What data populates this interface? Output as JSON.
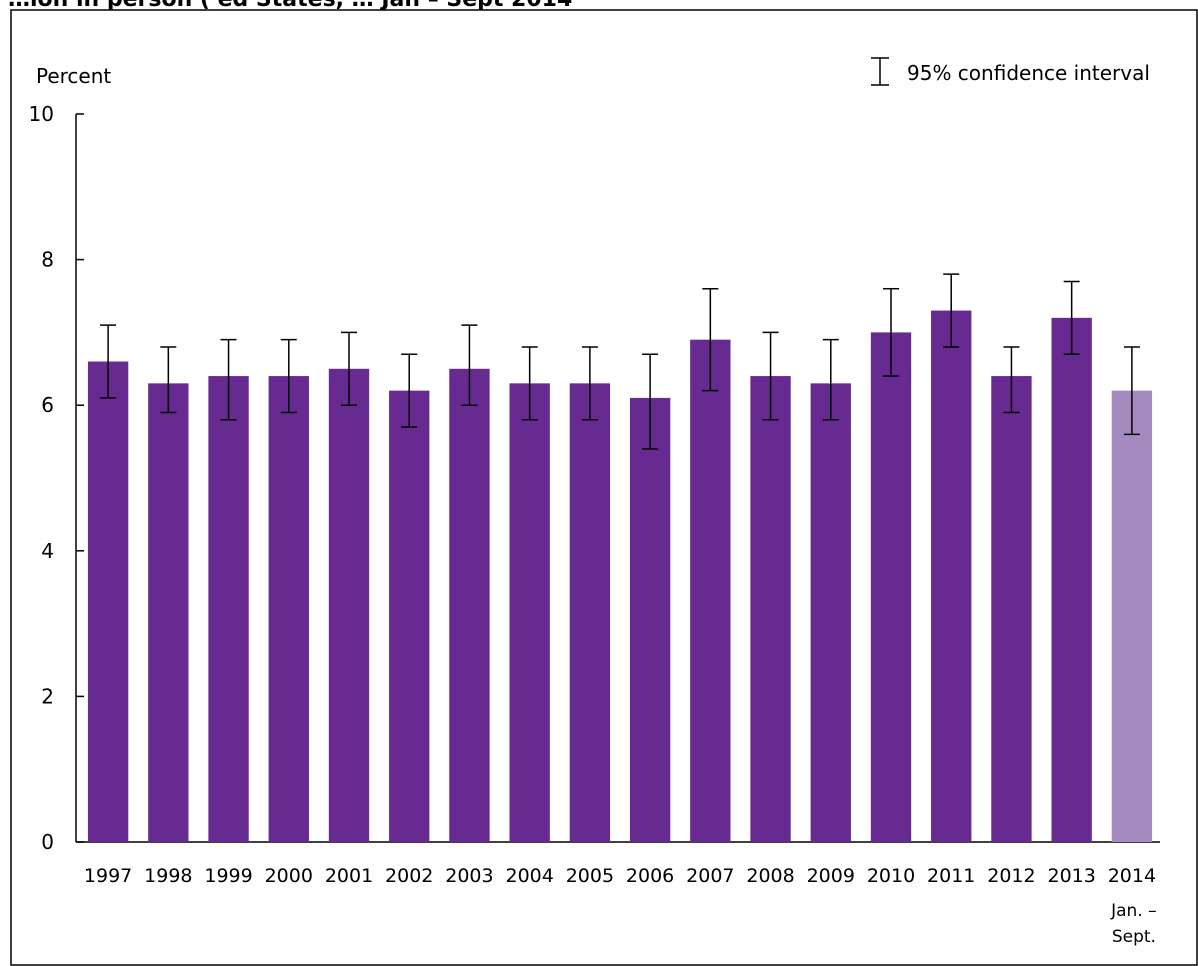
{
  "chart_data": {
    "type": "bar",
    "title": "…ion in person ( ed States, … Jan – Sept 2014",
    "ylabel": "Percent",
    "xlabel": "",
    "ylim": [
      0,
      10
    ],
    "yticks": [
      0,
      2,
      4,
      6,
      8,
      10
    ],
    "grid": false,
    "legend": {
      "label": "95% confidence interval",
      "placement": "top-right"
    },
    "categories": [
      "1997",
      "1998",
      "1999",
      "2000",
      "2001",
      "2002",
      "2003",
      "2004",
      "2005",
      "2006",
      "2007",
      "2008",
      "2009",
      "2010",
      "2011",
      "2012",
      "2013",
      "2014"
    ],
    "last_category_note": [
      "Jan. –",
      "Sept."
    ],
    "values": [
      6.6,
      6.3,
      6.4,
      6.4,
      6.5,
      6.2,
      6.5,
      6.3,
      6.3,
      6.1,
      6.9,
      6.4,
      6.3,
      7.0,
      7.3,
      6.4,
      7.2,
      6.2
    ],
    "ci_lower": [
      6.1,
      5.9,
      5.8,
      5.9,
      6.0,
      5.7,
      6.0,
      5.8,
      5.8,
      5.4,
      6.2,
      5.8,
      5.8,
      6.4,
      6.8,
      5.9,
      6.7,
      5.6
    ],
    "ci_upper": [
      7.1,
      6.8,
      6.9,
      6.9,
      7.0,
      6.7,
      7.1,
      6.8,
      6.8,
      6.7,
      7.6,
      7.0,
      6.9,
      7.6,
      7.8,
      6.8,
      7.7,
      6.8
    ],
    "colors": {
      "bar": "#662a90",
      "bar_partial_year": "#a58abf",
      "axis": "#000000"
    }
  }
}
